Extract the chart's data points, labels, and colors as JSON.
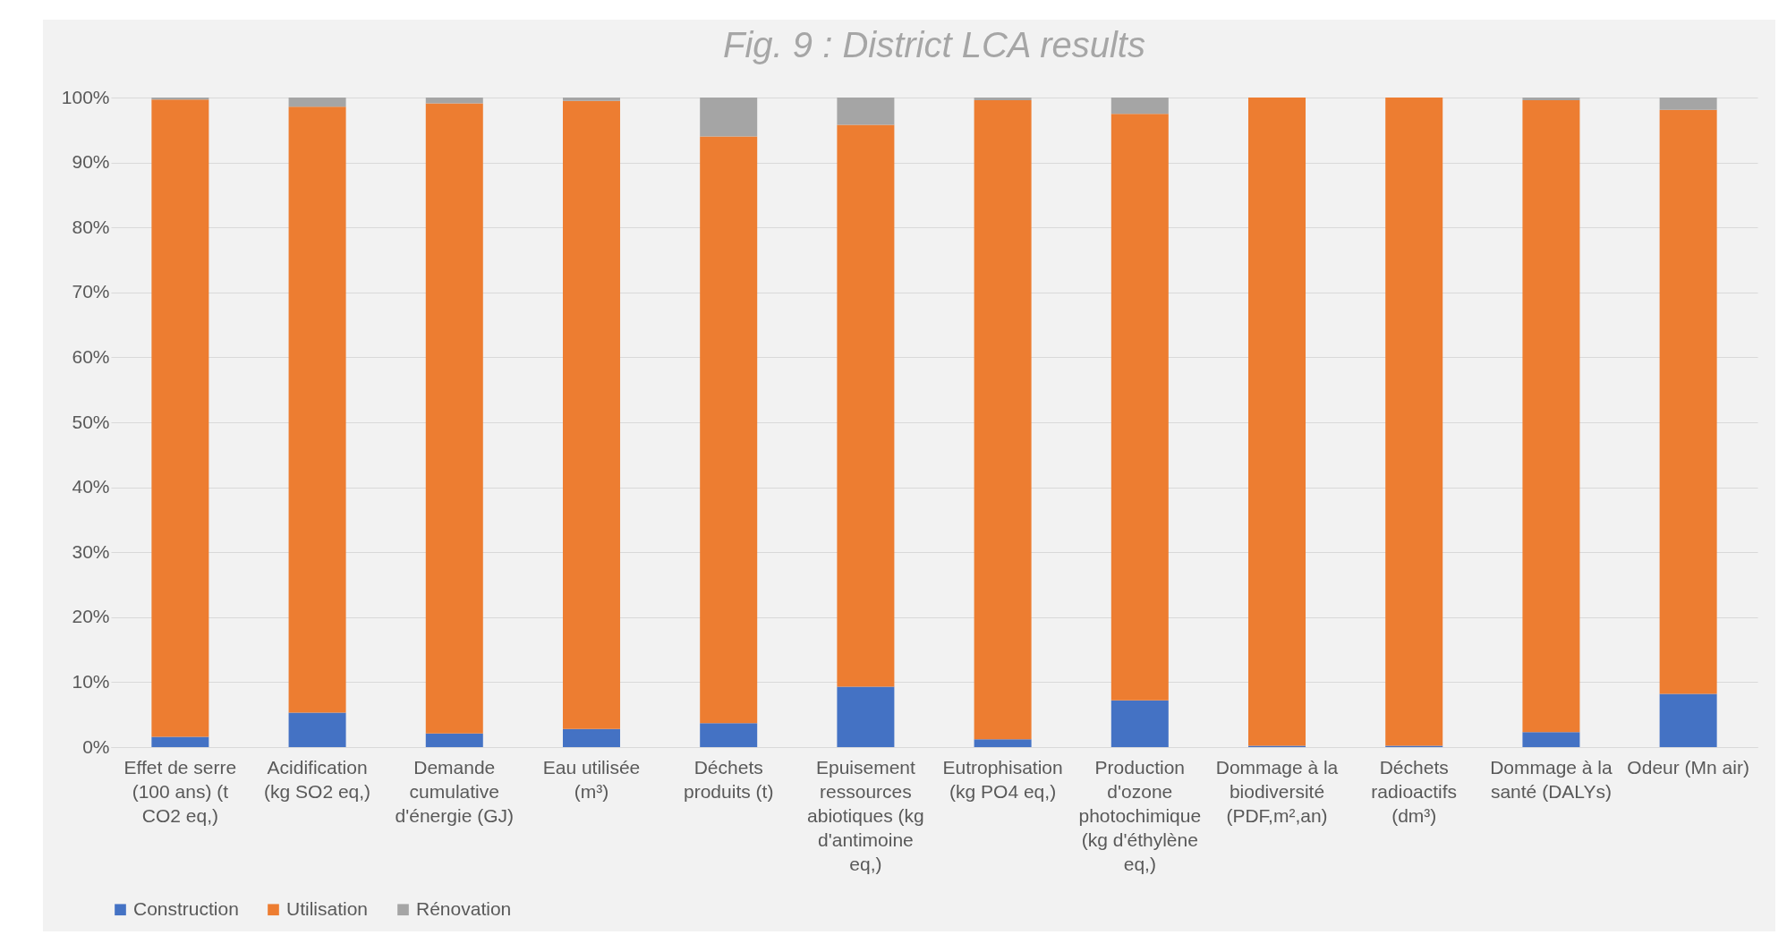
{
  "chart_data": {
    "type": "bar",
    "title": "Fig. 9 : District LCA results",
    "stacked": true,
    "categories": [
      "Effet de serre (100 ans) (t CO2 eq,)",
      "Acidification (kg SO2 eq,)",
      "Demande cumulative d'énergie (GJ)",
      "Eau utilisée (m³)",
      "Déchets produits (t)",
      "Epuisement ressources abiotiques (kg d'antimoine eq,)",
      "Eutrophisation (kg PO4 eq,)",
      "Production d'ozone photochimique (kg d'éthylène eq,)",
      "Dommage à la biodiversité (PDF,m²,an)",
      "Déchets radioactifs (dm³)",
      "Dommage à la santé (DALYs)",
      "Odeur (Mn air)"
    ],
    "series": [
      {
        "name": "Construction",
        "color": "#4472c4",
        "values": [
          1.6,
          5.3,
          2.1,
          2.8,
          3.7,
          9.3,
          1.2,
          7.2,
          0.2,
          0.2,
          2.3,
          8.2
        ]
      },
      {
        "name": "Utilisation",
        "color": "#ed7d31",
        "values": [
          98.1,
          93.3,
          97.0,
          96.7,
          90.3,
          86.5,
          98.4,
          90.3,
          99.8,
          99.8,
          97.3,
          89.9
        ]
      },
      {
        "name": "Rénovation",
        "color": "#a5a5a5",
        "values": [
          0.3,
          1.4,
          0.9,
          0.5,
          6.0,
          4.2,
          0.4,
          2.5,
          0,
          0,
          0.4,
          1.9
        ]
      }
    ],
    "ylim": [
      0,
      100
    ],
    "yticks": [
      {
        "value": 0,
        "label": "0%"
      },
      {
        "value": 10,
        "label": "10%"
      },
      {
        "value": 20,
        "label": "20%"
      },
      {
        "value": 30,
        "label": "30%"
      },
      {
        "value": 40,
        "label": "40%"
      },
      {
        "value": 50,
        "label": "50%"
      },
      {
        "value": 60,
        "label": "60%"
      },
      {
        "value": 70,
        "label": "70%"
      },
      {
        "value": 80,
        "label": "80%"
      },
      {
        "value": 90,
        "label": "90%"
      },
      {
        "value": 100,
        "label": "100%"
      }
    ],
    "grid": "y",
    "legend": "bottom"
  }
}
